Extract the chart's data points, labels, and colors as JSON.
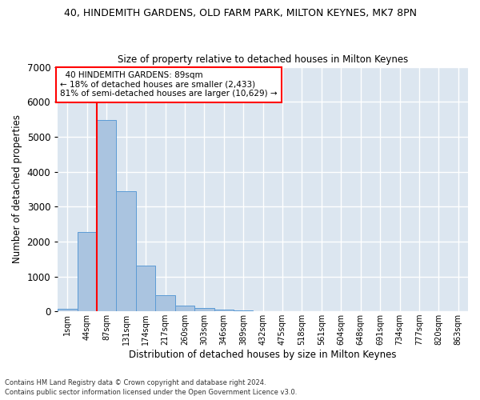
{
  "title": "40, HINDEMITH GARDENS, OLD FARM PARK, MILTON KEYNES, MK7 8PN",
  "subtitle": "Size of property relative to detached houses in Milton Keynes",
  "xlabel": "Distribution of detached houses by size in Milton Keynes",
  "ylabel": "Number of detached properties",
  "categories": [
    "1sqm",
    "44sqm",
    "87sqm",
    "131sqm",
    "174sqm",
    "217sqm",
    "260sqm",
    "303sqm",
    "346sqm",
    "389sqm",
    "432sqm",
    "475sqm",
    "518sqm",
    "561sqm",
    "604sqm",
    "648sqm",
    "691sqm",
    "734sqm",
    "777sqm",
    "820sqm",
    "863sqm"
  ],
  "bar_heights": [
    80,
    2280,
    5480,
    3450,
    1310,
    470,
    160,
    90,
    60,
    30,
    0,
    0,
    0,
    0,
    0,
    0,
    0,
    0,
    0,
    0,
    0
  ],
  "bar_color": "#aac4e0",
  "bar_edge_color": "#5b9bd5",
  "background_color": "#dce6f0",
  "grid_color": "#ffffff",
  "ylim": [
    0,
    7000
  ],
  "yticks": [
    0,
    1000,
    2000,
    3000,
    4000,
    5000,
    6000,
    7000
  ],
  "property_label": "40 HINDEMITH GARDENS: 89sqm",
  "pct_smaller": 18,
  "n_smaller": 2433,
  "pct_larger": 81,
  "n_larger": 10629,
  "vline_bar_index": 2,
  "footer_line1": "Contains HM Land Registry data © Crown copyright and database right 2024.",
  "footer_line2": "Contains public sector information licensed under the Open Government Licence v3.0."
}
